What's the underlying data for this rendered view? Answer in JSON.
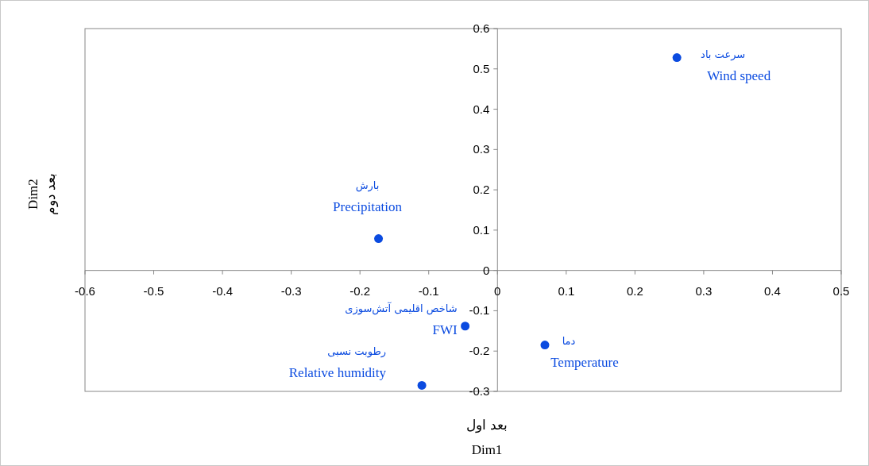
{
  "chart_data": {
    "type": "scatter",
    "xlabel": "بعد اول\nDim1",
    "ylabel": "Dim2\nبعد دوم",
    "xlim": [
      -0.6,
      0.5
    ],
    "xticks": [
      -0.6,
      -0.5,
      -0.4,
      -0.3,
      -0.2,
      -0.1,
      0,
      0.1,
      0.2,
      0.3,
      0.4,
      0.5
    ],
    "ylim": [
      -0.3,
      0.6
    ],
    "yticks": [
      -0.3,
      -0.2,
      -0.1,
      0,
      0.1,
      0.2,
      0.3,
      0.4,
      0.5,
      0.6
    ],
    "grid": false,
    "legend": false,
    "marker": "circle",
    "series": [
      {
        "name": "Wind speed",
        "color": "#0b4be0",
        "x": [
          0.261
        ],
        "values": [
          0.528
        ]
      },
      {
        "name": "Precipitation",
        "color": "#0b4be0",
        "x": [
          -0.173
        ],
        "values": [
          0.079
        ]
      },
      {
        "name": "FWI",
        "color": "#0b4be0",
        "x": [
          -0.047
        ],
        "values": [
          -0.138
        ]
      },
      {
        "name": "Temperature",
        "color": "#0b4be0",
        "x": [
          0.069
        ],
        "values": [
          -0.185
        ]
      },
      {
        "name": "Relative humidity",
        "color": "#0b4be0",
        "x": [
          -0.11
        ],
        "values": [
          -0.285
        ]
      }
    ],
    "annotations": [
      "سرعت باد",
      "بارش",
      "شاخص اقلیمی آتش‌سوزی",
      "دما",
      "رطوبت نسبی"
    ]
  }
}
